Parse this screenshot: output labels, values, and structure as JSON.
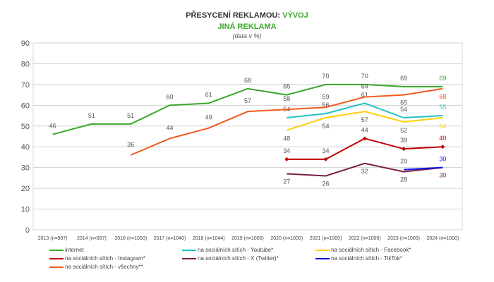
{
  "title": {
    "main": "PŘESYCENÍ REKLAMOU:",
    "main_accent": "VÝVOJ",
    "subtitle": "JINÁ REKLAMA",
    "note": "(data v %)"
  },
  "chart_data": {
    "type": "line",
    "title": "PŘESYCENÍ REKLAMOU: VÝVOJ – JINÁ REKLAMA",
    "ylim": [
      0,
      90
    ],
    "yticks": [
      0,
      10,
      20,
      30,
      40,
      50,
      60,
      70,
      80,
      90
    ],
    "grid": true,
    "legend": "bottom",
    "categories": [
      "2013 (n=987)",
      "2014 (n=997)",
      "2016 (n=1000)",
      "2017 (n=1040)",
      "2018 (n=1044)",
      "2019 (n=1000)",
      "2020 (n=1000)",
      "2021 (n=1000)",
      "2022 (n=1000)",
      "2023 (n=1000)",
      "2024 (n=1000)"
    ],
    "series": [
      {
        "name": "internet",
        "color": "#3aa82a",
        "values": [
          46,
          51,
          51,
          60,
          61,
          68,
          65,
          70,
          70,
          69,
          69
        ]
      },
      {
        "name": "na sociálních sítích - Youtube*",
        "color": "#22c3c3",
        "values": [
          null,
          null,
          null,
          null,
          null,
          null,
          54,
          56,
          61,
          54,
          55
        ]
      },
      {
        "name": "na sociálních sítích - Facebook*",
        "color": "#ffd000",
        "values": [
          null,
          null,
          null,
          null,
          null,
          null,
          48,
          54,
          57,
          52,
          54
        ]
      },
      {
        "name": "na sociálních sítích - Instagram*",
        "color": "#c00000",
        "marker": "diamond",
        "values": [
          null,
          null,
          null,
          null,
          null,
          null,
          34,
          34,
          44,
          39,
          40
        ]
      },
      {
        "name": "na sociálních sítích - X (Twitter)*",
        "color": "#7a1f4a",
        "values": [
          null,
          null,
          null,
          null,
          null,
          null,
          27,
          26,
          32,
          28,
          30
        ]
      },
      {
        "name": "na sociálních sítích - TikTok*",
        "color": "#1010ee",
        "values": [
          null,
          null,
          null,
          null,
          null,
          null,
          null,
          null,
          null,
          29,
          30
        ]
      },
      {
        "name": "na sociálních sítích - všechny**",
        "color": "#f05a1e",
        "values": [
          null,
          null,
          36,
          44,
          49,
          57,
          58,
          59,
          64,
          65,
          68
        ]
      }
    ]
  }
}
